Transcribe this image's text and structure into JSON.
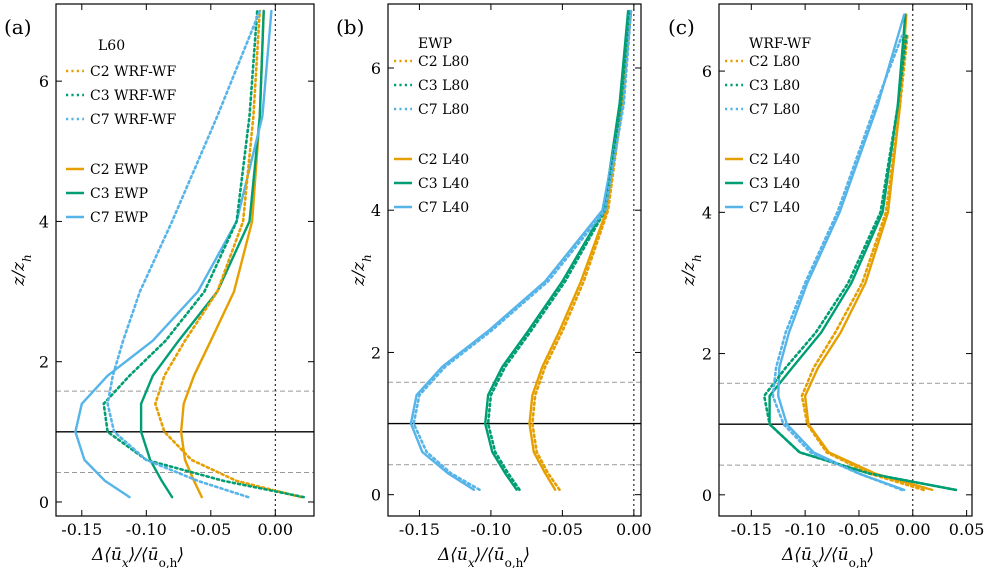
{
  "colors": {
    "C2": "#E69F00",
    "C3": "#009E73",
    "C7": "#56B4E9",
    "frame": "#000000",
    "guide_dash": "#9a9a9a"
  },
  "chart_data": [
    {
      "type": "line",
      "panel_tag": "(a)",
      "legend_title": "L60",
      "xlabel": "Δ⟨ū_x⟩/⟨ū_o,h⟩",
      "ylabel": "z/z_h",
      "xlim": [
        -0.17,
        0.03
      ],
      "ylim": [
        -0.2,
        7.1
      ],
      "xticks": [
        -0.15,
        -0.1,
        -0.05,
        0.0
      ],
      "xtick_labels": [
        "-0.15",
        "-0.10",
        "-0.05",
        "0.00"
      ],
      "yticks": [
        0,
        2,
        4,
        6
      ],
      "ytick_labels": [
        "0",
        "2",
        "4",
        "6"
      ],
      "hlines_solid": [
        1.0
      ],
      "hlines_dashed": [
        0.42,
        1.58
      ],
      "vline_dotted": 0.0,
      "series": [
        {
          "name": "C2 WRF-WF",
          "group": "C2",
          "style": "dotted",
          "x": [
            0.02,
            -0.03,
            -0.065,
            -0.086,
            -0.093,
            -0.086,
            -0.07,
            -0.045,
            -0.025,
            -0.017,
            -0.012
          ],
          "y": [
            0.07,
            0.3,
            0.6,
            1.0,
            1.4,
            1.8,
            2.3,
            3.0,
            4.0,
            5.5,
            7.0
          ]
        },
        {
          "name": "C3 WRF-WF",
          "group": "C3",
          "style": "dotted",
          "x": [
            0.022,
            -0.04,
            -0.1,
            -0.13,
            -0.133,
            -0.113,
            -0.085,
            -0.055,
            -0.03,
            -0.02,
            -0.014
          ],
          "y": [
            0.07,
            0.3,
            0.6,
            1.0,
            1.4,
            1.8,
            2.3,
            3.0,
            4.0,
            5.5,
            7.0
          ]
        },
        {
          "name": "C7 WRF-WF",
          "group": "C7",
          "style": "dotted",
          "x": [
            -0.021,
            -0.06,
            -0.1,
            -0.125,
            -0.13,
            -0.126,
            -0.118,
            -0.105,
            -0.08,
            -0.045,
            -0.012
          ],
          "y": [
            0.07,
            0.3,
            0.6,
            1.0,
            1.4,
            1.8,
            2.3,
            3.0,
            4.0,
            5.5,
            7.0
          ]
        },
        {
          "name": "C2 EWP",
          "group": "C2",
          "style": "solid",
          "x": [
            -0.057,
            -0.063,
            -0.07,
            -0.073,
            -0.071,
            -0.063,
            -0.05,
            -0.032,
            -0.018,
            -0.012,
            -0.009
          ],
          "y": [
            0.07,
            0.3,
            0.6,
            1.0,
            1.4,
            1.8,
            2.3,
            3.0,
            4.0,
            5.5,
            7.0
          ]
        },
        {
          "name": "C3 EWP",
          "group": "C3",
          "style": "solid",
          "x": [
            -0.08,
            -0.088,
            -0.097,
            -0.104,
            -0.104,
            -0.095,
            -0.075,
            -0.045,
            -0.02,
            -0.012,
            -0.009
          ],
          "y": [
            0.07,
            0.3,
            0.6,
            1.0,
            1.4,
            1.8,
            2.3,
            3.0,
            4.0,
            5.5,
            7.0
          ]
        },
        {
          "name": "C7 EWP",
          "group": "C7",
          "style": "solid",
          "x": [
            -0.113,
            -0.132,
            -0.148,
            -0.155,
            -0.15,
            -0.13,
            -0.095,
            -0.06,
            -0.03,
            -0.01,
            -0.003
          ],
          "y": [
            0.07,
            0.3,
            0.6,
            1.0,
            1.4,
            1.8,
            2.3,
            3.0,
            4.0,
            5.5,
            7.0
          ]
        }
      ]
    },
    {
      "type": "line",
      "panel_tag": "(b)",
      "legend_title": "EWP",
      "xlabel": "Δ⟨ū_x⟩/⟨ū_o,h⟩",
      "ylabel": "z/z_h",
      "xlim": [
        -0.172,
        0.005
      ],
      "ylim": [
        -0.3,
        6.9
      ],
      "xticks": [
        -0.15,
        -0.1,
        -0.05,
        0.0
      ],
      "xtick_labels": [
        "-0.15",
        "-0.10",
        "-0.05",
        "0.00"
      ],
      "yticks": [
        0,
        2,
        4,
        6
      ],
      "ytick_labels": [
        "0",
        "2",
        "4",
        "6"
      ],
      "hlines_solid": [
        1.0
      ],
      "hlines_dashed": [
        0.42,
        1.58
      ],
      "vline_dotted": 0.0,
      "series": [
        {
          "name": "C2 L80",
          "group": "C2",
          "style": "dotted",
          "x": [
            -0.052,
            -0.06,
            -0.068,
            -0.071,
            -0.069,
            -0.062,
            -0.05,
            -0.035,
            -0.018,
            -0.008,
            -0.002
          ],
          "y": [
            0.07,
            0.3,
            0.6,
            1.0,
            1.4,
            1.8,
            2.3,
            3.0,
            4.0,
            5.5,
            6.8
          ]
        },
        {
          "name": "C3 L80",
          "group": "C3",
          "style": "dotted",
          "x": [
            -0.08,
            -0.088,
            -0.097,
            -0.102,
            -0.1,
            -0.09,
            -0.072,
            -0.048,
            -0.02,
            -0.009,
            -0.003
          ],
          "y": [
            0.07,
            0.3,
            0.6,
            1.0,
            1.4,
            1.8,
            2.3,
            3.0,
            4.0,
            5.5,
            6.8
          ]
        },
        {
          "name": "C7 L80",
          "group": "C7",
          "style": "dotted",
          "x": [
            -0.108,
            -0.128,
            -0.145,
            -0.154,
            -0.15,
            -0.132,
            -0.1,
            -0.06,
            -0.02,
            -0.007,
            -0.002
          ],
          "y": [
            0.07,
            0.3,
            0.6,
            1.0,
            1.4,
            1.8,
            2.3,
            3.0,
            4.0,
            5.5,
            6.8
          ]
        },
        {
          "name": "C2 L40",
          "group": "C2",
          "style": "solid",
          "x": [
            -0.055,
            -0.062,
            -0.07,
            -0.073,
            -0.071,
            -0.064,
            -0.052,
            -0.037,
            -0.019,
            -0.009,
            -0.003
          ],
          "y": [
            0.07,
            0.3,
            0.6,
            1.0,
            1.4,
            1.8,
            2.3,
            3.0,
            4.0,
            5.5,
            6.8
          ]
        },
        {
          "name": "C3 L40",
          "group": "C3",
          "style": "solid",
          "x": [
            -0.082,
            -0.09,
            -0.099,
            -0.104,
            -0.102,
            -0.092,
            -0.074,
            -0.05,
            -0.021,
            -0.01,
            -0.004
          ],
          "y": [
            0.07,
            0.3,
            0.6,
            1.0,
            1.4,
            1.8,
            2.3,
            3.0,
            4.0,
            5.5,
            6.8
          ]
        },
        {
          "name": "C7 L40",
          "group": "C7",
          "style": "solid",
          "x": [
            -0.112,
            -0.13,
            -0.148,
            -0.156,
            -0.152,
            -0.134,
            -0.102,
            -0.062,
            -0.022,
            -0.008,
            -0.003
          ],
          "y": [
            0.07,
            0.3,
            0.6,
            1.0,
            1.4,
            1.8,
            2.3,
            3.0,
            4.0,
            5.5,
            6.8
          ]
        }
      ]
    },
    {
      "type": "line",
      "panel_tag": "(c)",
      "legend_title": "WRF-WF",
      "xlabel": "Δ⟨ū_x⟩/⟨ū_o,h⟩",
      "ylabel": "z/z_h",
      "xlim": [
        -0.18,
        0.055
      ],
      "ylim": [
        -0.3,
        6.95
      ],
      "xticks": [
        -0.15,
        -0.1,
        -0.05,
        0.0,
        0.05
      ],
      "xtick_labels": [
        "-0.15",
        "-0.10",
        "-0.05",
        "0.00",
        "0.05"
      ],
      "yticks": [
        0,
        2,
        4,
        6
      ],
      "ytick_labels": [
        "0",
        "2",
        "4",
        "6"
      ],
      "hlines_solid": [
        1.0
      ],
      "hlines_dashed": [
        0.42,
        1.58
      ],
      "vline_dotted": 0.0,
      "series": [
        {
          "name": "C2 L80",
          "group": "C2",
          "style": "dotted",
          "x": [
            0.01,
            -0.04,
            -0.08,
            -0.098,
            -0.103,
            -0.092,
            -0.072,
            -0.047,
            -0.025,
            -0.012,
            -0.005
          ],
          "y": [
            0.07,
            0.3,
            0.6,
            1.0,
            1.4,
            1.8,
            2.3,
            3.0,
            4.0,
            5.5,
            6.5
          ]
        },
        {
          "name": "C3 L80",
          "group": "C3",
          "style": "dotted",
          "x": [
            0.04,
            -0.04,
            -0.105,
            -0.133,
            -0.138,
            -0.118,
            -0.09,
            -0.06,
            -0.03,
            -0.014,
            -0.006
          ],
          "y": [
            0.07,
            0.3,
            0.6,
            1.0,
            1.4,
            1.8,
            2.3,
            3.0,
            4.0,
            5.5,
            6.5
          ]
        },
        {
          "name": "C7 L80",
          "group": "C7",
          "style": "dotted",
          "x": [
            -0.01,
            -0.05,
            -0.095,
            -0.12,
            -0.13,
            -0.127,
            -0.118,
            -0.1,
            -0.07,
            -0.035,
            -0.01
          ],
          "y": [
            0.07,
            0.3,
            0.6,
            1.0,
            1.4,
            1.8,
            2.3,
            3.0,
            4.0,
            5.5,
            6.5
          ]
        },
        {
          "name": "C2 L40",
          "group": "C2",
          "style": "solid",
          "x": [
            0.018,
            -0.035,
            -0.078,
            -0.097,
            -0.1,
            -0.088,
            -0.067,
            -0.044,
            -0.023,
            -0.012,
            -0.006
          ],
          "y": [
            0.07,
            0.3,
            0.6,
            1.0,
            1.4,
            1.8,
            2.3,
            3.0,
            4.0,
            5.5,
            6.8
          ]
        },
        {
          "name": "C3 L40",
          "group": "C3",
          "style": "solid",
          "x": [
            0.04,
            -0.04,
            -0.105,
            -0.133,
            -0.133,
            -0.112,
            -0.085,
            -0.057,
            -0.028,
            -0.014,
            -0.007
          ],
          "y": [
            0.07,
            0.3,
            0.6,
            1.0,
            1.4,
            1.8,
            2.3,
            3.0,
            4.0,
            5.5,
            6.8
          ]
        },
        {
          "name": "C7 L40",
          "group": "C7",
          "style": "solid",
          "x": [
            -0.008,
            -0.05,
            -0.092,
            -0.117,
            -0.125,
            -0.124,
            -0.115,
            -0.098,
            -0.068,
            -0.033,
            -0.008
          ],
          "y": [
            0.07,
            0.3,
            0.6,
            1.0,
            1.4,
            1.8,
            2.3,
            3.0,
            4.0,
            5.5,
            6.8
          ]
        }
      ]
    }
  ]
}
